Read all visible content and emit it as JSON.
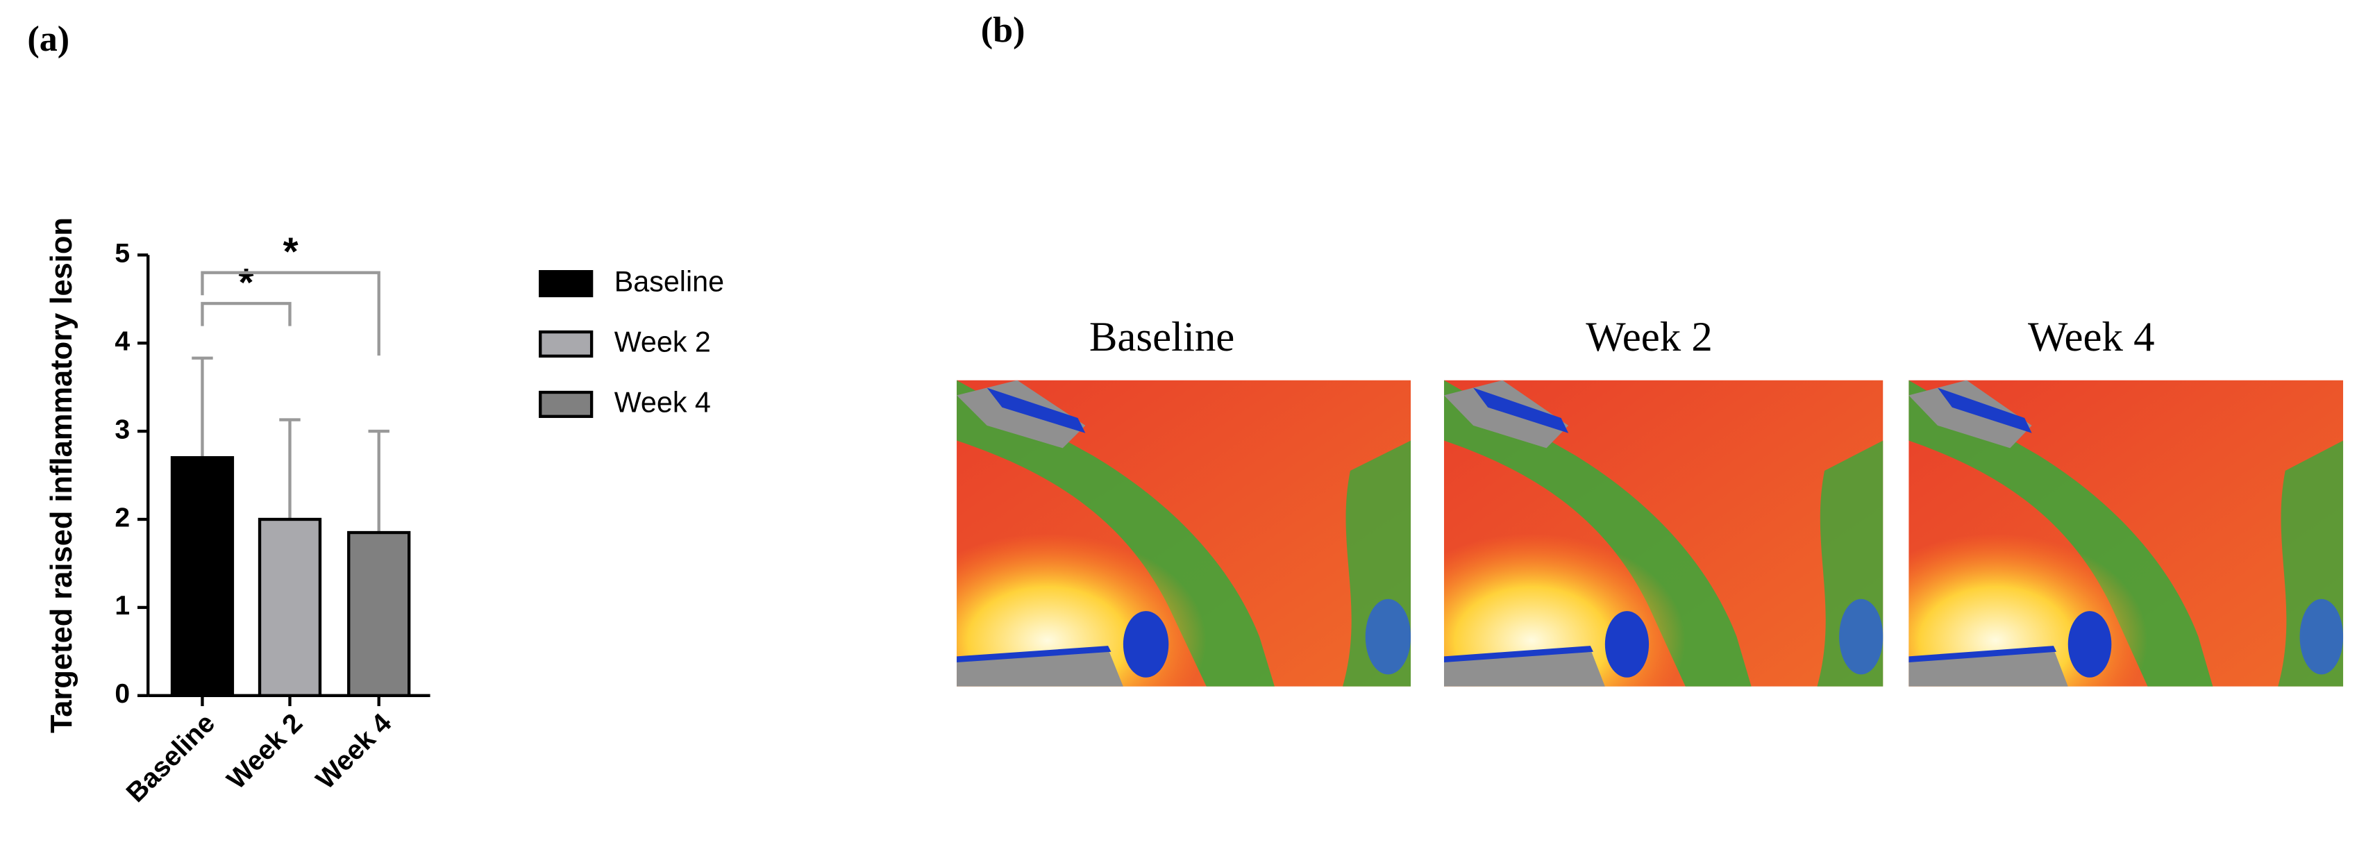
{
  "panel_labels": [
    "(a)",
    "(b)"
  ],
  "chart_data": {
    "type": "bar",
    "ylabel": "Targeted raised inflammatory lesion",
    "categories": [
      "Baseline",
      "Week 2",
      "Week 4"
    ],
    "values": [
      2.7,
      2.0,
      1.85
    ],
    "errors": [
      1.13,
      1.13,
      1.15
    ],
    "colors": [
      "#000000",
      "#a9a9ad",
      "#808080"
    ],
    "ylim": [
      0,
      5
    ],
    "yticks": [
      0,
      1,
      2,
      3,
      4,
      5
    ],
    "legend": [
      "Baseline",
      "Week 2",
      "Week 4"
    ],
    "significance": [
      {
        "from": 0,
        "to": 1,
        "level": 4.45,
        "label": "*"
      },
      {
        "from": 0,
        "to": 2,
        "level": 4.8,
        "label": "*"
      }
    ]
  },
  "images": {
    "labels": [
      "Baseline",
      "Week 2",
      "Week 4"
    ]
  }
}
